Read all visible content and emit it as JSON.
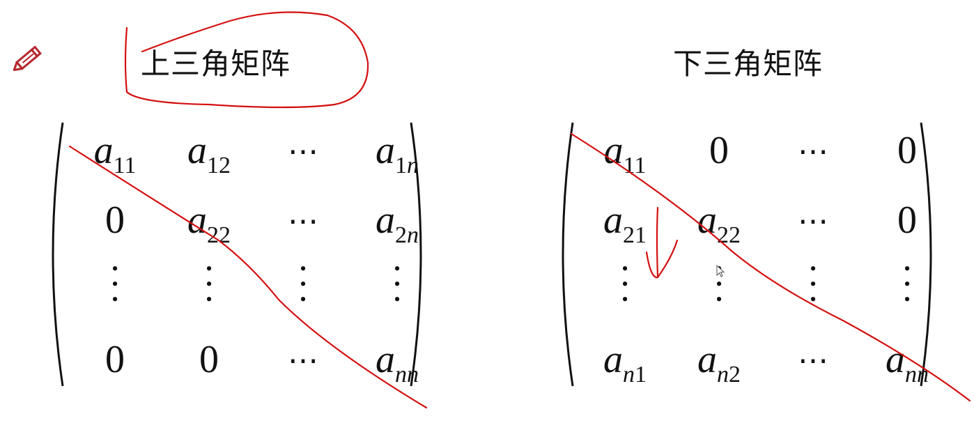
{
  "left": {
    "title": "上三角矩阵",
    "rows": [
      [
        {
          "b": "a",
          "s": "11"
        },
        {
          "b": "a",
          "s": "12"
        },
        {
          "t": "cdots"
        },
        {
          "b": "a",
          "s": "1",
          "v": "n"
        }
      ],
      [
        {
          "t": "0"
        },
        {
          "b": "a",
          "s": "22"
        },
        {
          "t": "cdots"
        },
        {
          "b": "a",
          "s": "2",
          "v": "n"
        }
      ],
      [
        {
          "t": "vdots"
        },
        {
          "t": "vdots"
        },
        {
          "t": "vdots"
        },
        {
          "t": "vdots"
        }
      ],
      [
        {
          "t": "0"
        },
        {
          "t": "0"
        },
        {
          "t": "cdots"
        },
        {
          "b": "a",
          "v": "nn"
        }
      ]
    ]
  },
  "right": {
    "title": "下三角矩阵",
    "rows": [
      [
        {
          "b": "a",
          "s": "11"
        },
        {
          "t": "0"
        },
        {
          "t": "cdots"
        },
        {
          "t": "0"
        }
      ],
      [
        {
          "b": "a",
          "s": "21"
        },
        {
          "b": "a",
          "s": "22"
        },
        {
          "t": "cdots"
        },
        {
          "t": "0"
        }
      ],
      [
        {
          "t": "vdots"
        },
        {
          "t": "vdots"
        },
        {
          "t": "vdots"
        },
        {
          "t": "vdots"
        }
      ],
      [
        {
          "b": "a",
          "v": "n",
          "s": "1"
        },
        {
          "b": "a",
          "v": "n",
          "s": "2"
        },
        {
          "t": "cdots"
        },
        {
          "b": "a",
          "v": "nn"
        }
      ]
    ]
  },
  "icons": {
    "pencil": "pencil-icon",
    "cursor": "mouse-cursor-icon"
  },
  "colors": {
    "ink": "#d40f0f",
    "text": "#111111",
    "pencil": "#b5262b"
  }
}
